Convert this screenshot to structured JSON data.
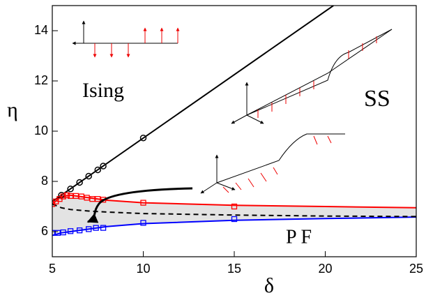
{
  "chart_data": {
    "type": "line",
    "x_label": "δ",
    "y_label": "η",
    "annotations": [
      "Ising",
      "SS",
      "P F"
    ],
    "xlim": [
      5,
      25
    ],
    "xticks": [
      5,
      10,
      15,
      20,
      25
    ],
    "ylim": [
      5,
      15
    ],
    "yticks": [
      6,
      8,
      10,
      12,
      14
    ],
    "fill_between": [
      0,
      1
    ],
    "fill_color": "#e3e3e3",
    "series": [
      {
        "style": "line",
        "color": "#ff0000",
        "x": [
          5,
          5.5,
          6,
          7,
          8,
          10,
          15,
          20,
          25
        ],
        "values": [
          7.1,
          7.4,
          7.45,
          7.35,
          7.25,
          7.15,
          7.05,
          7.0,
          6.95
        ]
      },
      {
        "style": "line",
        "color": "#0000ff",
        "x": [
          5,
          5.5,
          6,
          7,
          8,
          10,
          15,
          20,
          25
        ],
        "values": [
          5.85,
          5.95,
          6.0,
          6.1,
          6.2,
          6.32,
          6.45,
          6.52,
          6.58
        ]
      },
      {
        "style": "dashed",
        "color": "#000000",
        "x": [
          5,
          5.5,
          6,
          7,
          8,
          10,
          15,
          20,
          25
        ],
        "values": [
          7.1,
          6.95,
          6.88,
          6.82,
          6.78,
          6.72,
          6.66,
          6.62,
          6.6
        ]
      },
      {
        "style": "line",
        "color": "#000000",
        "x": [
          5,
          20.45
        ],
        "values": [
          7.2,
          15
        ]
      },
      {
        "style": "circle",
        "color": "#000000",
        "x": [
          5.5,
          6,
          6.5,
          7,
          7.5,
          7.8,
          10
        ],
        "values": [
          7.45,
          7.7,
          7.96,
          8.21,
          8.46,
          8.61,
          9.73
        ]
      },
      {
        "style": "square",
        "color": "#ff0000",
        "x": [
          5,
          5.2,
          5.4,
          5.6,
          5.8,
          6,
          6.3,
          6.6,
          6.9,
          7.2,
          7.5,
          7.8,
          10,
          15
        ],
        "values": [
          7.1,
          7.2,
          7.3,
          7.4,
          7.45,
          7.42,
          7.42,
          7.4,
          7.35,
          7.3,
          7.3,
          7.27,
          7.15,
          7.0
        ]
      },
      {
        "style": "square",
        "color": "#0000ff",
        "x": [
          5,
          5.3,
          5.6,
          6,
          6.5,
          7,
          7.4,
          7.8,
          10,
          15
        ],
        "values": [
          5.95,
          5.95,
          5.97,
          6.02,
          6.05,
          6.1,
          6.15,
          6.15,
          6.35,
          6.5
        ]
      }
    ]
  }
}
